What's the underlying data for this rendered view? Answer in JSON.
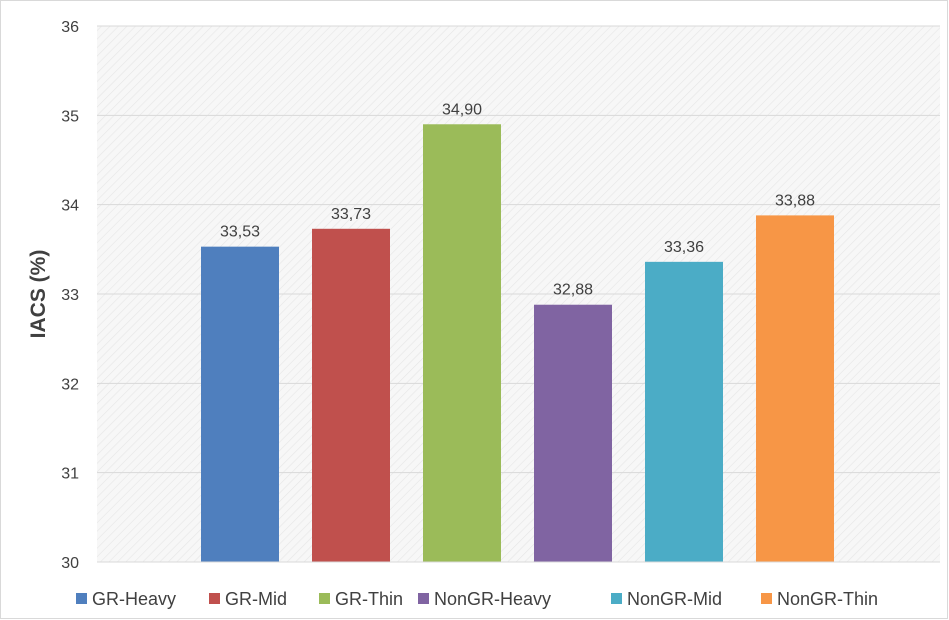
{
  "chart_data": {
    "type": "bar",
    "title": "",
    "xlabel": "",
    "ylabel": "IACS (%)",
    "ylim": [
      30,
      36
    ],
    "yticks": [
      "30",
      "31",
      "32",
      "33",
      "34",
      "35",
      "36"
    ],
    "grid": true,
    "legend_position": "bottom",
    "categories": [
      "GR-Heavy",
      "GR-Mid",
      "GR-Thin",
      "NonGR-Heavy",
      "NonGR-Mid",
      "NonGR-Thin"
    ],
    "values": [
      33.53,
      33.73,
      34.9,
      32.88,
      33.36,
      33.88
    ],
    "data_labels": [
      "33,53",
      "33,73",
      "34,90",
      "32,88",
      "33,36",
      "33,88"
    ],
    "colors": [
      "#4f7fbe",
      "#c0504d",
      "#9bbb59",
      "#8064a2",
      "#4bacc6",
      "#f79646"
    ]
  }
}
